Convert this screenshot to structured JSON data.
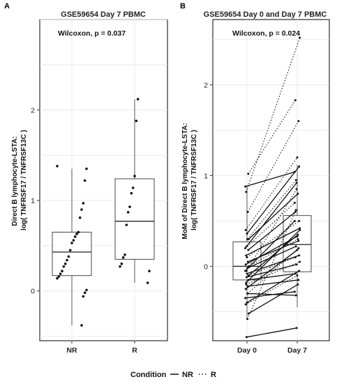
{
  "chart_data": [
    {
      "panel": "A",
      "type": "box",
      "title": "GSE59654 Day 7  PBMC",
      "annotation": "Wilcoxon, p = 0.037",
      "ylabel": "Direct B lymphocyte-LSTA:\nlog( TNFRSF17 / TNFRSF13C )",
      "ylim": [
        -0.55,
        3.0
      ],
      "yticks": [
        0,
        1,
        2
      ],
      "categories": [
        "NR",
        "R"
      ],
      "boxes": [
        {
          "name": "NR",
          "min": -0.38,
          "q1": 0.17,
          "median": 0.43,
          "q3": 0.65,
          "max": 1.35
        },
        {
          "name": "R",
          "min": 0.09,
          "q1": 0.35,
          "median": 0.77,
          "q3": 1.24,
          "max": 2.12
        }
      ],
      "points": [
        {
          "category": "NR",
          "values": [
            1.38,
            1.35,
            1.22,
            0.97,
            0.9,
            0.81,
            0.65,
            0.63,
            0.6,
            0.56,
            0.53,
            0.45,
            0.38,
            0.34,
            0.3,
            0.27,
            0.22,
            0.19,
            0.16,
            0.14,
            0.01,
            -0.02,
            -0.06,
            -0.38
          ]
        },
        {
          "category": "R",
          "values": [
            2.12,
            1.88,
            1.27,
            1.14,
            1.08,
            0.93,
            0.87,
            0.73,
            0.4,
            0.37,
            0.3,
            0.27,
            0.22,
            0.09
          ]
        }
      ]
    },
    {
      "panel": "B",
      "type": "paired-box",
      "title": "GSE59654 Day 0 and Day 7  PBMC",
      "annotation": "Wilcoxon, p = 0.024",
      "ylabel": "MoM of  Direct B lymphocyte-LSTA:\nlog( TNFRSF17 / TNFRSF13C )",
      "ylim": [
        -0.82,
        2.72
      ],
      "yticks": [
        0,
        1,
        2
      ],
      "categories": [
        "Day 0",
        "Day 7"
      ],
      "boxes": [
        {
          "name": "Day 0",
          "min": -0.58,
          "q1": -0.15,
          "median": 0.0,
          "q3": 0.27,
          "max": 0.88
        },
        {
          "name": "Day 7",
          "min": -0.45,
          "q1": -0.06,
          "median": 0.24,
          "q3": 0.56,
          "max": 1.12
        }
      ],
      "pairs": [
        {
          "group": "NR",
          "day0": 0.88,
          "day7": 1.04
        },
        {
          "group": "NR",
          "day0": 0.36,
          "day7": 1.1
        },
        {
          "group": "NR",
          "day0": 0.3,
          "day7": 0.8
        },
        {
          "group": "NR",
          "day0": 0.22,
          "day7": 0.92
        },
        {
          "group": "NR",
          "day0": 0.18,
          "day7": 0.6
        },
        {
          "group": "NR",
          "day0": 0.12,
          "day7": 0.42
        },
        {
          "group": "NR",
          "day0": 0.05,
          "day7": 0.28
        },
        {
          "group": "NR",
          "day0": 0.02,
          "day7": 0.33
        },
        {
          "group": "NR",
          "day0": -0.02,
          "day7": 0.22
        },
        {
          "group": "NR",
          "day0": -0.05,
          "day7": 0.5
        },
        {
          "group": "NR",
          "day0": -0.08,
          "day7": 0.12
        },
        {
          "group": "NR",
          "day0": -0.1,
          "day7": 0.35
        },
        {
          "group": "NR",
          "day0": -0.12,
          "day7": 0.02
        },
        {
          "group": "NR",
          "day0": -0.15,
          "day7": -0.08
        },
        {
          "group": "NR",
          "day0": -0.18,
          "day7": 0.4
        },
        {
          "group": "NR",
          "day0": -0.22,
          "day7": -0.15
        },
        {
          "group": "NR",
          "day0": -0.25,
          "day7": 0.18
        },
        {
          "group": "NR",
          "day0": -0.3,
          "day7": -0.32
        },
        {
          "group": "NR",
          "day0": -0.35,
          "day7": -0.28
        },
        {
          "group": "NR",
          "day0": -0.4,
          "day7": -0.05
        },
        {
          "group": "NR",
          "day0": -0.52,
          "day7": -0.2
        },
        {
          "group": "NR",
          "day0": -0.78,
          "day7": -0.68
        },
        {
          "group": "R",
          "day0": 1.02,
          "day7": 1.83
        },
        {
          "group": "R",
          "day0": 0.82,
          "day7": 2.52
        },
        {
          "group": "R",
          "day0": 0.6,
          "day7": 1.6
        },
        {
          "group": "R",
          "day0": 0.4,
          "day7": 1.2
        },
        {
          "group": "R",
          "day0": 0.3,
          "day7": 0.95
        },
        {
          "group": "R",
          "day0": 0.2,
          "day7": 0.7
        },
        {
          "group": "R",
          "day0": 0.1,
          "day7": 0.5
        },
        {
          "group": "R",
          "day0": 0.0,
          "day7": 0.3
        },
        {
          "group": "R",
          "day0": -0.05,
          "day7": 0.85
        },
        {
          "group": "R",
          "day0": -0.1,
          "day7": 0.1
        },
        {
          "group": "R",
          "day0": -0.2,
          "day7": 0.05
        },
        {
          "group": "R",
          "day0": -0.3,
          "day7": 0.2
        },
        {
          "group": "R",
          "day0": -0.42,
          "day7": -0.1
        },
        {
          "group": "R",
          "day0": -0.58,
          "day7": 0.62
        }
      ]
    }
  ],
  "legend": {
    "title": "Condition",
    "items": [
      {
        "label": "NR",
        "style": "solid"
      },
      {
        "label": "R",
        "style": "dotted"
      }
    ]
  }
}
